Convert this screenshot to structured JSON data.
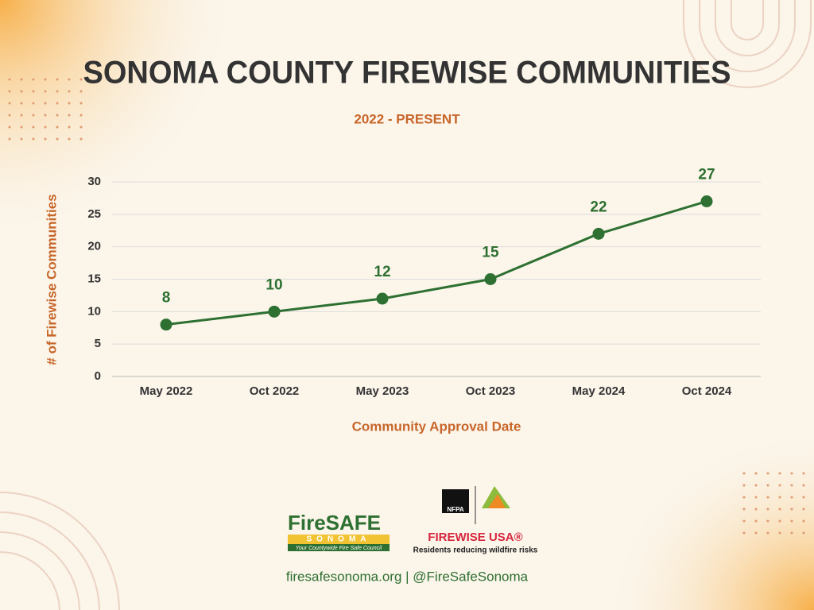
{
  "chart_data": {
    "type": "line",
    "title": "SONOMA COUNTY FIREWISE COMMUNITIES",
    "subtitle": "2022 - PRESENT",
    "x_label": "Community Approval Date",
    "y_label": "# of Firewise Communities",
    "categories": [
      "May 2022",
      "Oct 2022",
      "May 2023",
      "Oct 2023",
      "May 2024",
      "Oct 2024"
    ],
    "values": [
      8,
      10,
      12,
      15,
      22,
      27
    ],
    "color": "#2e7031",
    "ylim": [
      0,
      30
    ],
    "yticks": [
      0,
      5,
      10,
      15,
      20,
      25,
      30
    ],
    "grid": true
  },
  "logos": {
    "firesafe_name": "FireSAFE",
    "firesafe_county": "SONOMA",
    "firesafe_tagline": "Your Countywide Fire Safe Council",
    "nfpa": "NFPA",
    "firewise": "FIREWISE USA®",
    "firewise_tagline": "Residents reducing wildfire risks"
  },
  "footer": "firesafesonoma.org | @FireSafeSonoma"
}
